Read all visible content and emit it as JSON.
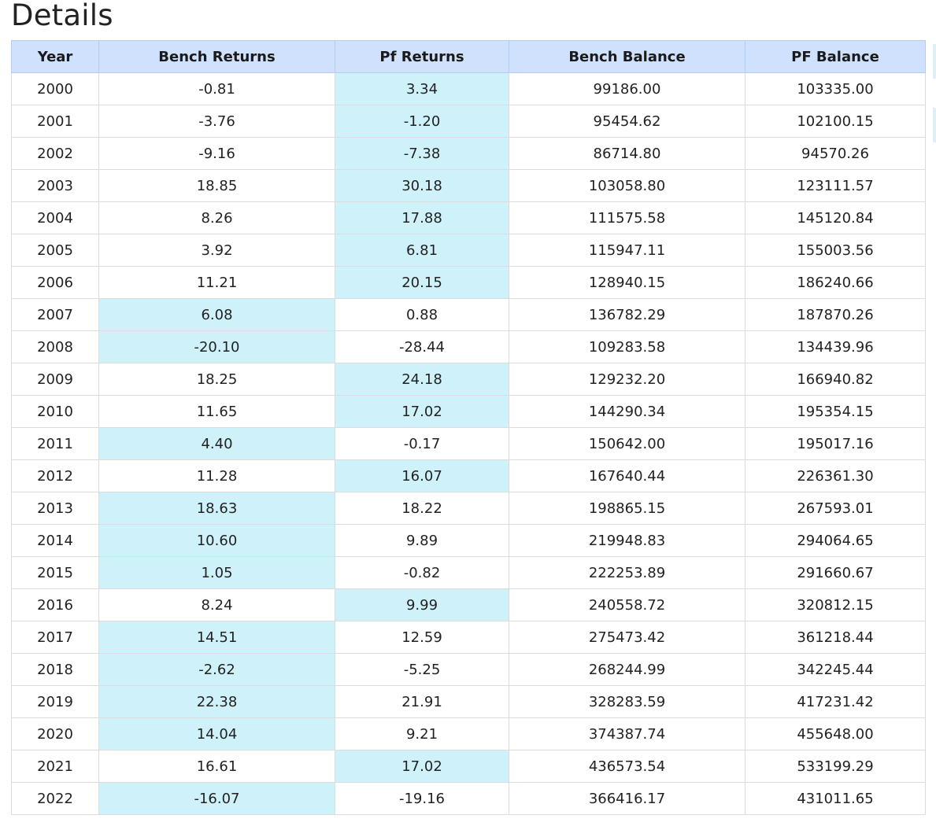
{
  "page": {
    "title": "Details"
  },
  "table": {
    "columns": [
      "Year",
      "Bench Returns",
      "Pf Returns",
      "Bench Balance",
      "PF Balance"
    ],
    "rows": [
      {
        "year": "2000",
        "bench_returns": "-0.81",
        "pf_returns": "3.34",
        "bench_balance": "99186.00",
        "pf_balance": "103335.00",
        "highlight": "pf"
      },
      {
        "year": "2001",
        "bench_returns": "-3.76",
        "pf_returns": "-1.20",
        "bench_balance": "95454.62",
        "pf_balance": "102100.15",
        "highlight": "pf"
      },
      {
        "year": "2002",
        "bench_returns": "-9.16",
        "pf_returns": "-7.38",
        "bench_balance": "86714.80",
        "pf_balance": "94570.26",
        "highlight": "pf"
      },
      {
        "year": "2003",
        "bench_returns": "18.85",
        "pf_returns": "30.18",
        "bench_balance": "103058.80",
        "pf_balance": "123111.57",
        "highlight": "pf"
      },
      {
        "year": "2004",
        "bench_returns": "8.26",
        "pf_returns": "17.88",
        "bench_balance": "111575.58",
        "pf_balance": "145120.84",
        "highlight": "pf"
      },
      {
        "year": "2005",
        "bench_returns": "3.92",
        "pf_returns": "6.81",
        "bench_balance": "115947.11",
        "pf_balance": "155003.56",
        "highlight": "pf"
      },
      {
        "year": "2006",
        "bench_returns": "11.21",
        "pf_returns": "20.15",
        "bench_balance": "128940.15",
        "pf_balance": "186240.66",
        "highlight": "pf"
      },
      {
        "year": "2007",
        "bench_returns": "6.08",
        "pf_returns": "0.88",
        "bench_balance": "136782.29",
        "pf_balance": "187870.26",
        "highlight": "bench"
      },
      {
        "year": "2008",
        "bench_returns": "-20.10",
        "pf_returns": "-28.44",
        "bench_balance": "109283.58",
        "pf_balance": "134439.96",
        "highlight": "bench"
      },
      {
        "year": "2009",
        "bench_returns": "18.25",
        "pf_returns": "24.18",
        "bench_balance": "129232.20",
        "pf_balance": "166940.82",
        "highlight": "pf"
      },
      {
        "year": "2010",
        "bench_returns": "11.65",
        "pf_returns": "17.02",
        "bench_balance": "144290.34",
        "pf_balance": "195354.15",
        "highlight": "pf"
      },
      {
        "year": "2011",
        "bench_returns": "4.40",
        "pf_returns": "-0.17",
        "bench_balance": "150642.00",
        "pf_balance": "195017.16",
        "highlight": "bench"
      },
      {
        "year": "2012",
        "bench_returns": "11.28",
        "pf_returns": "16.07",
        "bench_balance": "167640.44",
        "pf_balance": "226361.30",
        "highlight": "pf"
      },
      {
        "year": "2013",
        "bench_returns": "18.63",
        "pf_returns": "18.22",
        "bench_balance": "198865.15",
        "pf_balance": "267593.01",
        "highlight": "bench"
      },
      {
        "year": "2014",
        "bench_returns": "10.60",
        "pf_returns": "9.89",
        "bench_balance": "219948.83",
        "pf_balance": "294064.65",
        "highlight": "bench"
      },
      {
        "year": "2015",
        "bench_returns": "1.05",
        "pf_returns": "-0.82",
        "bench_balance": "222253.89",
        "pf_balance": "291660.67",
        "highlight": "bench"
      },
      {
        "year": "2016",
        "bench_returns": "8.24",
        "pf_returns": "9.99",
        "bench_balance": "240558.72",
        "pf_balance": "320812.15",
        "highlight": "pf"
      },
      {
        "year": "2017",
        "bench_returns": "14.51",
        "pf_returns": "12.59",
        "bench_balance": "275473.42",
        "pf_balance": "361218.44",
        "highlight": "bench"
      },
      {
        "year": "2018",
        "bench_returns": "-2.62",
        "pf_returns": "-5.25",
        "bench_balance": "268244.99",
        "pf_balance": "342245.44",
        "highlight": "bench"
      },
      {
        "year": "2019",
        "bench_returns": "22.38",
        "pf_returns": "21.91",
        "bench_balance": "328283.59",
        "pf_balance": "417231.42",
        "highlight": "bench"
      },
      {
        "year": "2020",
        "bench_returns": "14.04",
        "pf_returns": "9.21",
        "bench_balance": "374387.74",
        "pf_balance": "455648.00",
        "highlight": "bench"
      },
      {
        "year": "2021",
        "bench_returns": "16.61",
        "pf_returns": "17.02",
        "bench_balance": "436573.54",
        "pf_balance": "533199.29",
        "highlight": "pf"
      },
      {
        "year": "2022",
        "bench_returns": "-16.07",
        "pf_returns": "-19.16",
        "bench_balance": "366416.17",
        "pf_balance": "431011.65",
        "highlight": "bench"
      }
    ]
  },
  "colors": {
    "header_bg": "#cfe1fd",
    "highlight_bg": "#cff2fa",
    "border": "#dcdcdc"
  }
}
